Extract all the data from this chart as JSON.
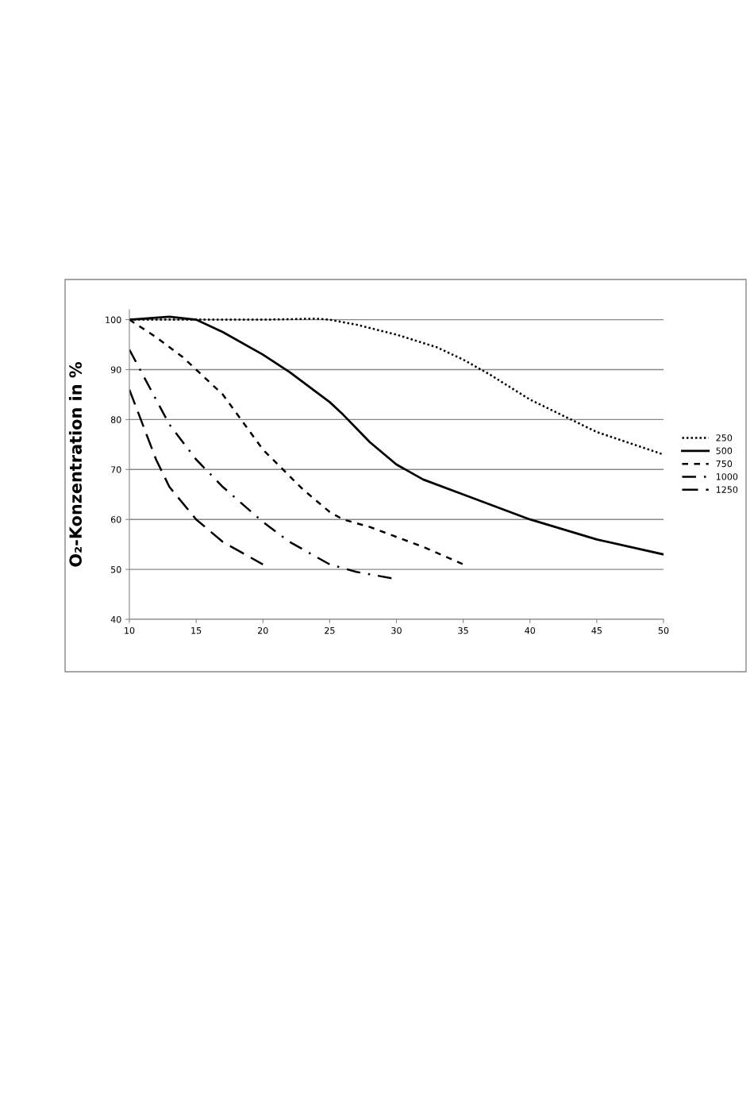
{
  "chart_data": {
    "type": "line",
    "ylabel": "O₂-Konzentration in %",
    "xlim": [
      10,
      50
    ],
    "xticks": [
      10,
      15,
      20,
      25,
      30,
      35,
      40,
      45,
      50
    ],
    "ylim": [
      40,
      102
    ],
    "yticks": [
      40,
      50,
      60,
      70,
      80,
      90,
      100
    ],
    "grid": "y",
    "legend": "right",
    "marker": "none",
    "series": [
      {
        "name": "250",
        "color": "#000000",
        "line_style": "dotted",
        "x": [
          10,
          15,
          20,
          24,
          25,
          27,
          30,
          33,
          35,
          37,
          40,
          45,
          50
        ],
        "values": [
          100,
          100,
          100,
          100.2,
          100,
          99,
          97,
          94.5,
          92,
          89,
          84,
          77.5,
          73
        ]
      },
      {
        "name": "500",
        "color": "#000000",
        "line_style": "solid",
        "x": [
          10,
          13,
          15,
          17,
          20,
          22,
          25,
          26,
          28,
          30,
          32,
          35,
          40,
          45,
          50
        ],
        "values": [
          100,
          100.6,
          100,
          97.5,
          93,
          89.5,
          83.5,
          81,
          75.5,
          71,
          68,
          65,
          60,
          56,
          53
        ]
      },
      {
        "name": "750",
        "color": "#000000",
        "line_style": "dashed",
        "x": [
          10,
          12,
          14,
          15,
          17,
          20,
          23,
          25,
          26,
          28,
          30,
          32,
          35
        ],
        "values": [
          100,
          96.5,
          92.5,
          90,
          85,
          74,
          66,
          61.5,
          60,
          58.5,
          56.5,
          54.5,
          51
        ]
      },
      {
        "name": "1000",
        "color": "#000000",
        "line_style": "dashdot",
        "x": [
          10,
          12,
          13,
          15,
          17,
          20,
          22,
          25,
          27,
          29.7
        ],
        "values": [
          94,
          84,
          79,
          72,
          66.5,
          59.5,
          55.5,
          51,
          49.5,
          48.2
        ]
      },
      {
        "name": "1250",
        "color": "#000000",
        "line_style": "longdash",
        "x": [
          10,
          11,
          12,
          13,
          15,
          17,
          20
        ],
        "values": [
          86,
          79,
          72,
          66.5,
          60,
          55.5,
          51
        ]
      }
    ]
  }
}
